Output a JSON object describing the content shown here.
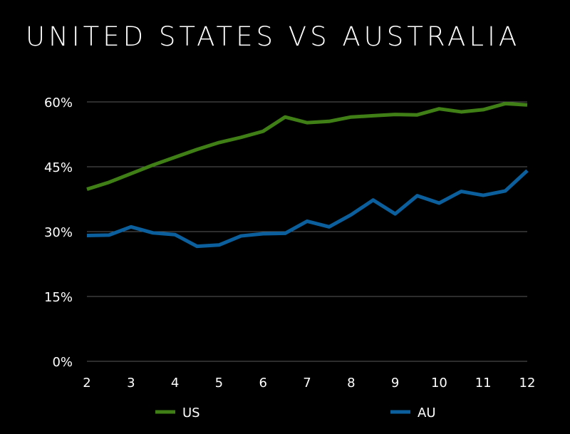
{
  "chart_data": {
    "type": "line",
    "title": "UNITED STATES VS AUSTRALIA",
    "xlabel": "",
    "ylabel": "",
    "x": [
      2,
      2.5,
      3,
      3.5,
      4,
      4.5,
      5,
      5.5,
      6,
      6.5,
      7,
      7.5,
      8,
      8.5,
      9,
      9.5,
      10,
      10.5,
      11,
      11.5,
      12
    ],
    "x_ticks": [
      "2",
      "3",
      "4",
      "5",
      "6",
      "7",
      "8",
      "9",
      "10",
      "11",
      "12"
    ],
    "x_tick_values": [
      2,
      3,
      4,
      5,
      6,
      7,
      8,
      9,
      10,
      11,
      12
    ],
    "xlim": [
      2,
      12
    ],
    "y_ticks": [
      "0%",
      "15%",
      "30%",
      "45%",
      "60%"
    ],
    "y_tick_values": [
      0,
      15,
      30,
      45,
      60
    ],
    "ylim": [
      0,
      60
    ],
    "grid": true,
    "legend_position": "bottom",
    "series": [
      {
        "name": "US",
        "color": "#3f7f16",
        "values": [
          39.8,
          41.4,
          43.4,
          45.4,
          47.2,
          49.0,
          50.6,
          51.8,
          53.2,
          56.5,
          55.2,
          55.5,
          56.5,
          56.8,
          57.1,
          57.0,
          58.4,
          57.7,
          58.2,
          59.6,
          59.3
        ]
      },
      {
        "name": "AU",
        "color": "#0b5f9c",
        "values": [
          29.1,
          29.2,
          31.1,
          29.7,
          29.3,
          26.6,
          26.9,
          29.0,
          29.5,
          29.6,
          32.4,
          31.1,
          33.9,
          37.3,
          34.1,
          38.3,
          36.6,
          39.3,
          38.4,
          39.4,
          44.1
        ]
      }
    ]
  }
}
